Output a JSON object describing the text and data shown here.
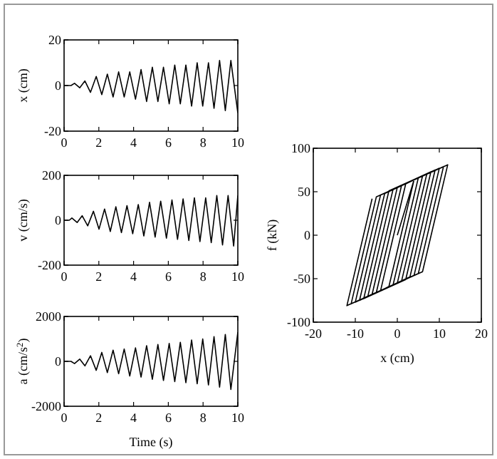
{
  "chart_data": [
    {
      "type": "line",
      "ylabel": "x (cm)",
      "color": "#000000",
      "xlim": [
        0,
        10
      ],
      "xticks": [
        0,
        2,
        4,
        6,
        8,
        10
      ],
      "ylim": [
        -20,
        20
      ],
      "yticks": [
        -20,
        0,
        20
      ],
      "x": [
        0,
        0.4,
        0.6,
        0.9,
        1.2,
        1.52,
        1.85,
        2.17,
        2.49,
        2.82,
        3.14,
        3.46,
        3.78,
        4.11,
        4.43,
        4.75,
        5.08,
        5.4,
        5.72,
        6.05,
        6.37,
        6.69,
        7.01,
        7.34,
        7.66,
        7.98,
        8.31,
        8.63,
        8.95,
        9.28,
        9.6,
        10
      ],
      "values": [
        0,
        0,
        1,
        -1,
        2,
        -3,
        4,
        -4,
        5,
        -5,
        6,
        -5,
        6,
        -6,
        7,
        -7,
        8,
        -7,
        8,
        -8,
        9,
        -8,
        9,
        -9,
        10,
        -9,
        10,
        -10,
        11,
        -11,
        11,
        -12
      ]
    },
    {
      "type": "line",
      "ylabel": "v (cm/s)",
      "color": "#000000",
      "xlim": [
        0,
        10
      ],
      "xticks": [
        0,
        2,
        4,
        6,
        8,
        10
      ],
      "ylim": [
        -200,
        200
      ],
      "yticks": [
        -200,
        0,
        200
      ],
      "x": [
        0,
        0.3,
        0.45,
        0.75,
        1.04,
        1.36,
        1.69,
        2.01,
        2.33,
        2.66,
        2.98,
        3.3,
        3.62,
        3.95,
        4.27,
        4.59,
        4.92,
        5.24,
        5.56,
        5.89,
        6.21,
        6.53,
        6.85,
        7.18,
        7.5,
        7.82,
        8.15,
        8.47,
        8.79,
        9.12,
        9.44,
        9.76,
        10
      ],
      "values": [
        0,
        0,
        10,
        -10,
        20,
        -25,
        40,
        -40,
        50,
        -50,
        60,
        -55,
        65,
        -60,
        70,
        -70,
        80,
        -75,
        85,
        -80,
        90,
        -85,
        95,
        -90,
        100,
        -95,
        100,
        -100,
        110,
        -110,
        110,
        -115,
        110
      ]
    },
    {
      "type": "line",
      "ylabel": "a (cm/s$^{2}$)",
      "xlabel": "Time (s)",
      "color": "#000000",
      "xlim": [
        0,
        10
      ],
      "xticks": [
        0,
        2,
        4,
        6,
        8,
        10
      ],
      "ylim": [
        -2000,
        2000
      ],
      "yticks": [
        -2000,
        0,
        2000
      ],
      "x": [
        0,
        0.4,
        0.6,
        0.9,
        1.2,
        1.52,
        1.85,
        2.17,
        2.49,
        2.82,
        3.14,
        3.46,
        3.78,
        4.11,
        4.43,
        4.75,
        5.08,
        5.4,
        5.72,
        6.05,
        6.37,
        6.69,
        7.01,
        7.34,
        7.66,
        7.98,
        8.31,
        8.63,
        8.95,
        9.28,
        9.6,
        10
      ],
      "values": [
        0,
        0,
        -100,
        100,
        -200,
        250,
        -400,
        400,
        -500,
        500,
        -550,
        550,
        -650,
        600,
        -700,
        700,
        -800,
        750,
        -850,
        800,
        -900,
        850,
        -950,
        950,
        -1000,
        1000,
        -1050,
        1100,
        -1150,
        1200,
        -1250,
        1300
      ]
    },
    {
      "type": "line",
      "ylabel": "f (kN)",
      "xlabel": "x (cm)",
      "color": "#000000",
      "xlim": [
        -20,
        20
      ],
      "xticks": [
        -20,
        -10,
        0,
        10,
        20
      ],
      "ylim": [
        -100,
        100
      ],
      "yticks": [
        -100,
        -50,
        0,
        50,
        100
      ],
      "x": [
        0,
        4,
        -2,
        -4,
        2,
        5,
        -1,
        -5,
        1,
        6,
        0,
        -6,
        0,
        7,
        1,
        -7,
        -1,
        8,
        2,
        -8,
        -2,
        9,
        3,
        -9,
        -3,
        10,
        4,
        -10,
        -4,
        11,
        5,
        -11,
        -5,
        12,
        6,
        -12,
        -6
      ],
      "values": [
        0,
        64,
        -59,
        -64,
        59,
        66,
        -57,
        -66,
        57,
        68,
        -55,
        -68,
        55,
        70,
        -53,
        -70,
        53,
        73,
        -51,
        -73,
        51,
        75,
        -48,
        -75,
        48,
        77,
        -46,
        -77,
        46,
        79,
        -44,
        -79,
        44,
        81,
        -42,
        -81,
        42
      ]
    }
  ]
}
